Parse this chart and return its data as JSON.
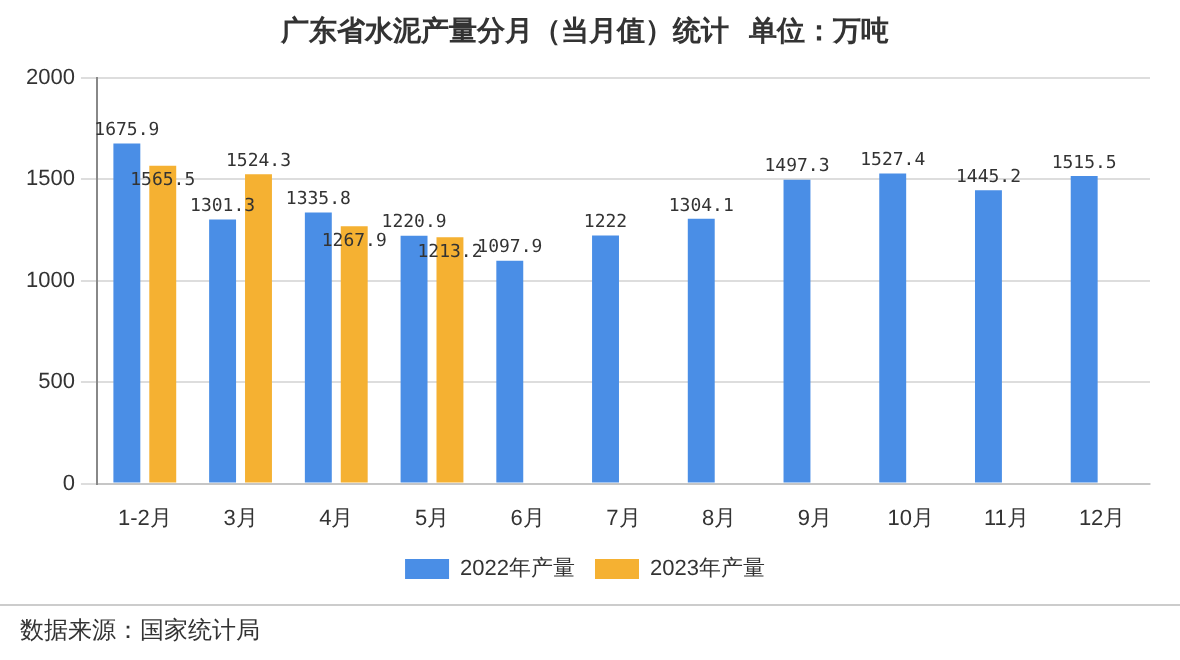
{
  "chart_data": {
    "type": "bar",
    "title": "广东省水泥产量分月（当月值）统计  单位：万吨",
    "categories": [
      "1-2月",
      "3月",
      "4月",
      "5月",
      "6月",
      "7月",
      "8月",
      "9月",
      "10月",
      "11月",
      "12月"
    ],
    "series": [
      {
        "name": "2022年产量",
        "color": "#4a8ee6",
        "values": [
          1675.9,
          1301.3,
          1335.8,
          1220.9,
          1097.9,
          1222,
          1304.1,
          1497.3,
          1527.4,
          1445.2,
          1515.5
        ]
      },
      {
        "name": "2023年产量",
        "color": "#f5b132",
        "values": [
          1565.5,
          1524.3,
          1267.9,
          1213.2,
          null,
          null,
          null,
          null,
          null,
          null,
          null
        ]
      }
    ],
    "ylim": [
      0,
      2000
    ],
    "yticks": [
      0,
      500,
      1000,
      1500,
      2000
    ],
    "grid": "y",
    "legend": "bottom",
    "data_labels": true,
    "annotations": [
      "数据来源：国家统计局"
    ]
  }
}
